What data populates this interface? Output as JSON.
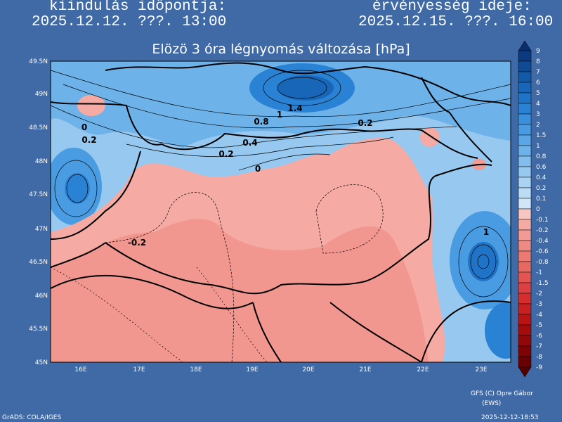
{
  "header": {
    "init_label": "kiindulás idöpontja:",
    "init_time": "2025.12.12. ???. 13:00",
    "valid_label": "érvényesség ideje:",
    "valid_time": "2025.12.15. ???. 16:00"
  },
  "title": "Elözö 3 óra légnyomás változása [hPa]",
  "lat_labels": [
    "49.5N",
    "49N",
    "48.5N",
    "48N",
    "47.5N",
    "47N",
    "46.5N",
    "46N",
    "45.5N",
    "45N"
  ],
  "lon_labels": [
    "16E",
    "17E",
    "18E",
    "19E",
    "20E",
    "21E",
    "22E",
    "23E"
  ],
  "contour_labels": [
    "1.4",
    "1",
    "0.8",
    "0.2",
    "0.4",
    "0.2",
    "0",
    "0",
    "0.2",
    "-0.2",
    "1"
  ],
  "colorbar": {
    "labels": [
      9,
      8,
      7,
      6,
      5,
      4,
      3,
      2,
      1.5,
      1,
      0.8,
      0.6,
      0.4,
      0.2,
      0.1,
      0,
      -0.1,
      -0.2,
      -0.4,
      -0.6,
      -0.8,
      -1,
      -1.5,
      -2,
      -3,
      -4,
      -5,
      -6,
      -7,
      -8,
      -9
    ],
    "colors": [
      "#0a2d6e",
      "#0c3a80",
      "#0f4a94",
      "#1259a8",
      "#1766b8",
      "#1f74c8",
      "#2a82d4",
      "#3a90dc",
      "#4a9ce2",
      "#5aa6e6",
      "#6eb2ea",
      "#82bdee",
      "#96c8f0",
      "#aad3f3",
      "#bcdcf6",
      "#d0e6f8",
      "#f8c6c0",
      "#f5aaa4",
      "#f29a94",
      "#ee8a84",
      "#ea7a72",
      "#e66a62",
      "#e25550",
      "#dc4040",
      "#d42e2e",
      "#c82020",
      "#b81414",
      "#a40c0c",
      "#900808",
      "#7c0404",
      "#680202",
      "#540000"
    ]
  },
  "footer": {
    "credit": "GFS (C) Opre Gábor",
    "credit2": "(EWS)",
    "software": "GrADS: COLA/IGES",
    "timestamp": "2025-12-12-18:53"
  }
}
